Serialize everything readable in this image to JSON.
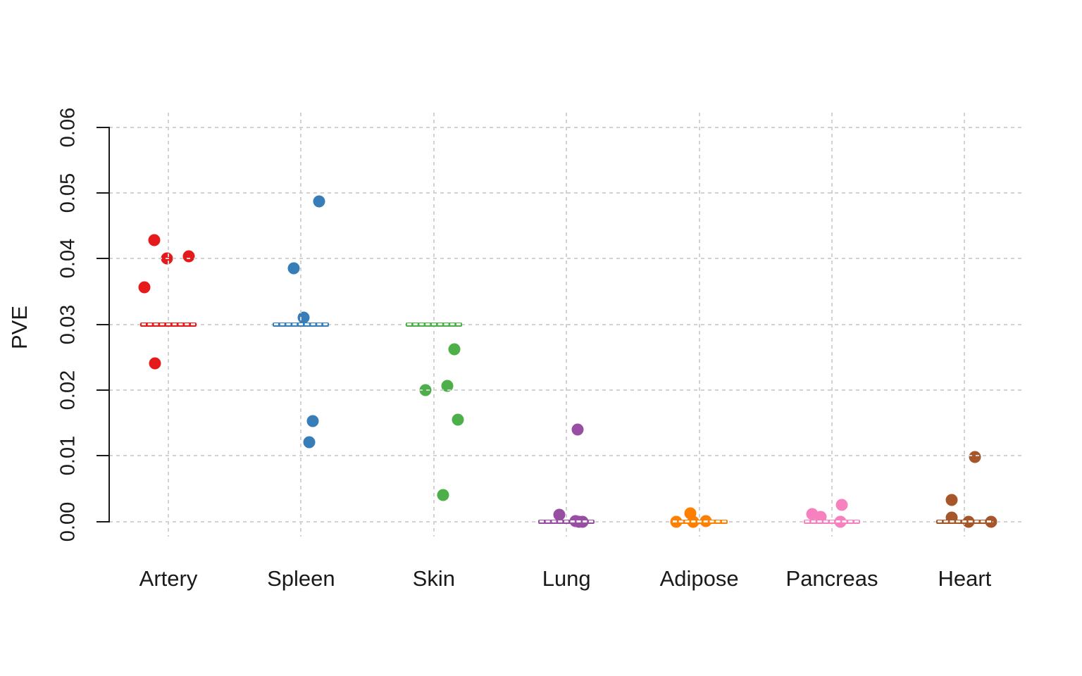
{
  "figure": {
    "background": "#ffffff",
    "axis_color": "#1a1a1a",
    "gridline_color": "#d2d2d2"
  },
  "chart_data": {
    "type": "scatter",
    "subtype": "strip-plot-with-reference-lines",
    "title": "",
    "xlabel": "",
    "ylabel": "PVE",
    "ylim": [
      0,
      0.06
    ],
    "yticks": [
      "0.00",
      "0.01",
      "0.02",
      "0.03",
      "0.04",
      "0.05",
      "0.06"
    ],
    "grid": {
      "show": true,
      "style": "dashed",
      "color": "#d2d2d2",
      "horizontal": true,
      "vertical": true
    },
    "legend": "none",
    "categories": [
      "Artery",
      "Spleen",
      "Skin",
      "Lung",
      "Adipose",
      "Pancreas",
      "Heart"
    ],
    "series": [
      {
        "name": "Artery",
        "color": "#E41A1C",
        "reference_line": 0.03,
        "points": [
          {
            "pve": 0.0428,
            "dx": -20
          },
          {
            "pve": 0.04,
            "dx": -2
          },
          {
            "pve": 0.0404,
            "dx": 29
          },
          {
            "pve": 0.0357,
            "dx": -34
          },
          {
            "pve": 0.0241,
            "dx": -19
          }
        ]
      },
      {
        "name": "Spleen",
        "color": "#377EB8",
        "reference_line": 0.03,
        "points": [
          {
            "pve": 0.0487,
            "dx": 26
          },
          {
            "pve": 0.0385,
            "dx": -10
          },
          {
            "pve": 0.031,
            "dx": 4
          },
          {
            "pve": 0.0153,
            "dx": 17
          },
          {
            "pve": 0.0121,
            "dx": 12
          }
        ]
      },
      {
        "name": "Skin",
        "color": "#4DAF4A",
        "reference_line": 0.03,
        "points": [
          {
            "pve": 0.0262,
            "dx": 29
          },
          {
            "pve": 0.0207,
            "dx": 19
          },
          {
            "pve": 0.02,
            "dx": -12
          },
          {
            "pve": 0.0155,
            "dx": 34
          },
          {
            "pve": 0.004,
            "dx": 13
          }
        ]
      },
      {
        "name": "Lung",
        "color": "#984EA3",
        "reference_line": 0,
        "points": [
          {
            "pve": 0.014,
            "dx": 16
          },
          {
            "pve": 0.001,
            "dx": -10
          },
          {
            "pve": 0.0001,
            "dx": 13
          },
          {
            "pve": 0.0,
            "dx": 23
          },
          {
            "pve": 0.0,
            "dx": 18
          }
        ]
      },
      {
        "name": "Adipose",
        "color": "#FF7F00",
        "reference_line": 0,
        "points": [
          {
            "pve": 0.0013,
            "dx": -13
          },
          {
            "pve": 0.0001,
            "dx": 9
          },
          {
            "pve": 0.0,
            "dx": -33
          },
          {
            "pve": 0.0,
            "dx": -9
          },
          {
            "pve": 0.0,
            "dx": -9
          }
        ]
      },
      {
        "name": "Pancreas",
        "color": "#F781BF",
        "reference_line": 0,
        "points": [
          {
            "pve": 0.0025,
            "dx": 14
          },
          {
            "pve": 0.0012,
            "dx": -28
          },
          {
            "pve": 0.0007,
            "dx": -16
          },
          {
            "pve": 0.0,
            "dx": 12
          },
          {
            "pve": 0.0,
            "dx": 12
          }
        ]
      },
      {
        "name": "Heart",
        "color": "#A65628",
        "reference_line": 0,
        "points": [
          {
            "pve": 0.0098,
            "dx": 15
          },
          {
            "pve": 0.0033,
            "dx": -18
          },
          {
            "pve": 0.0006,
            "dx": -18
          },
          {
            "pve": 0.0,
            "dx": 6
          },
          {
            "pve": 0.0,
            "dx": 38
          }
        ]
      }
    ]
  }
}
